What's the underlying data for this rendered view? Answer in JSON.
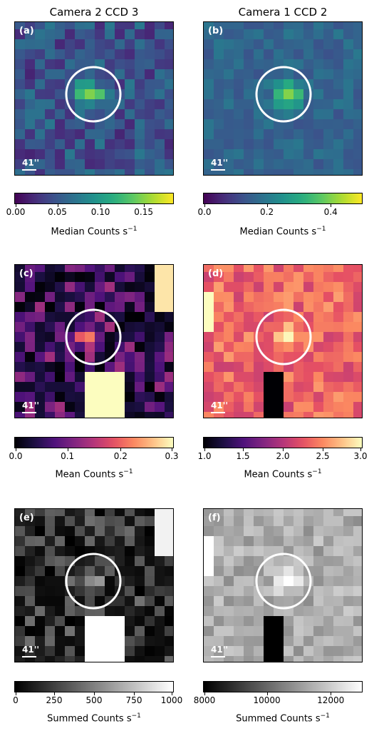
{
  "columns": [
    {
      "title": "Camera 2 CCD 3"
    },
    {
      "title": "Camera 1 CCD 2"
    }
  ],
  "panels": [
    {
      "label": "(a)",
      "scale_label": "41''"
    },
    {
      "label": "(b)",
      "scale_label": "41''"
    },
    {
      "label": "(c)",
      "scale_label": "41''"
    },
    {
      "label": "(d)",
      "scale_label": "41''"
    },
    {
      "label": "(e)",
      "scale_label": "41''"
    },
    {
      "label": "(f)",
      "scale_label": "41''"
    }
  ],
  "colorbars": [
    {
      "label": "Median Counts s",
      "exp": "−1",
      "ticks": [
        "0.00",
        "0.05",
        "0.10",
        "0.15"
      ],
      "tick_values": [
        0,
        0.05,
        0.1,
        0.15
      ],
      "range": [
        0,
        0.185
      ],
      "colormap": "viridis"
    },
    {
      "label": "Median Counts s",
      "exp": "−1",
      "ticks": [
        "0.0",
        "0.2",
        "0.4"
      ],
      "tick_values": [
        0,
        0.2,
        0.4
      ],
      "range": [
        0,
        0.5
      ],
      "colormap": "viridis"
    },
    {
      "label": "Mean Counts s",
      "exp": "−1",
      "ticks": [
        "0.0",
        "0.1",
        "0.2",
        "0.3"
      ],
      "tick_values": [
        0,
        0.1,
        0.2,
        0.3
      ],
      "range": [
        0,
        0.3
      ],
      "colormap": "magma"
    },
    {
      "label": "Mean Counts s",
      "exp": "−1",
      "ticks": [
        "1.0",
        "1.5",
        "2.0",
        "2.5",
        "3.0"
      ],
      "tick_values": [
        1,
        1.5,
        2,
        2.5,
        3
      ],
      "range": [
        1,
        3
      ],
      "colormap": "magma"
    },
    {
      "label": "Summed Counts s",
      "exp": "−1",
      "ticks": [
        "0",
        "250",
        "500",
        "750",
        "1000"
      ],
      "tick_values": [
        0,
        250,
        500,
        750,
        1000
      ],
      "range": [
        0,
        1000
      ],
      "colormap": "gray"
    },
    {
      "label": "Summed Counts s",
      "exp": "−1",
      "ticks": [
        "8000",
        "10000",
        "12000"
      ],
      "tick_values": [
        8000,
        10000,
        12000
      ],
      "range": [
        8000,
        13000
      ],
      "colormap": "gray"
    }
  ],
  "chart_data": [
    {
      "type": "heatmap",
      "panel": "(a)",
      "colormap": "viridis",
      "colorbar_range": [
        0,
        0.185
      ]
    },
    {
      "type": "heatmap",
      "panel": "(b)",
      "colormap": "viridis",
      "colorbar_range": [
        0,
        0.5
      ]
    },
    {
      "type": "heatmap",
      "panel": "(c)",
      "colormap": "magma",
      "colorbar_range": [
        0,
        0.3
      ]
    },
    {
      "type": "heatmap",
      "panel": "(d)",
      "colormap": "magma",
      "colorbar_range": [
        1.0,
        3.0
      ]
    },
    {
      "type": "heatmap",
      "panel": "(e)",
      "colormap": "gray",
      "colorbar_range": [
        0,
        1000
      ]
    },
    {
      "type": "heatmap",
      "panel": "(f)",
      "colormap": "gray",
      "colorbar_range": [
        8000,
        13000
      ]
    }
  ]
}
